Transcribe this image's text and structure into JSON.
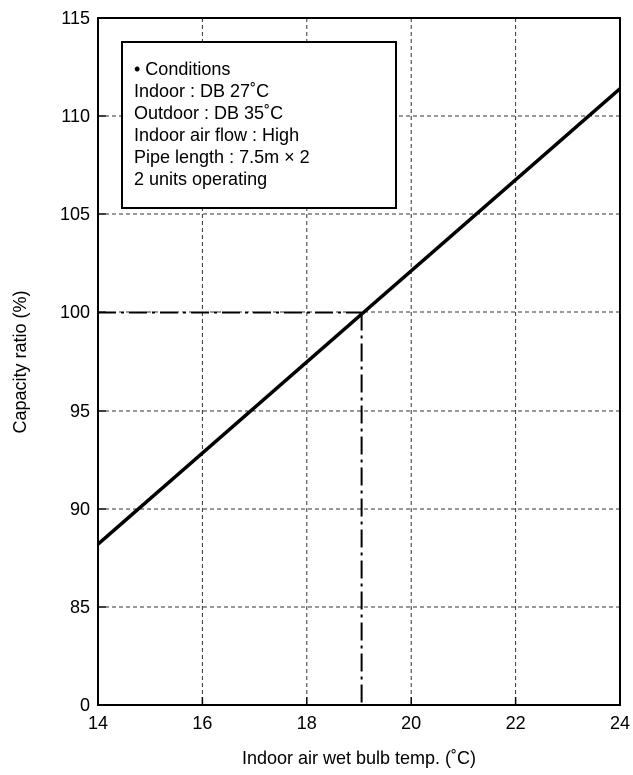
{
  "chart_data": {
    "type": "line",
    "title": "",
    "xlabel": "Indoor air wet bulb temp. (˚C)",
    "ylabel": "Capacity ratio (%)",
    "xlim": [
      14,
      24
    ],
    "x_ticks": [
      "14",
      "16",
      "18",
      "20",
      "22",
      "24"
    ],
    "y_ticks": [
      "0",
      "85",
      "90",
      "95",
      "100",
      "105",
      "110",
      "115"
    ],
    "y_axis_break": "axis jumps from 0 directly to 85",
    "grid": true,
    "series": [
      {
        "x": [
          14,
          24
        ],
        "y": [
          88.2,
          111.4
        ]
      }
    ],
    "reference_lines": {
      "x": 19.05,
      "y": 100,
      "style": "dash-dot"
    },
    "annotation_box": {
      "location": "top-left",
      "lines": [
        "• Conditions",
        "Indoor : DB 27˚C",
        "Outdoor : DB 35˚C",
        "Indoor air flow : High",
        "Pipe length : 7.5m × 2",
        "2 units operating"
      ]
    }
  }
}
